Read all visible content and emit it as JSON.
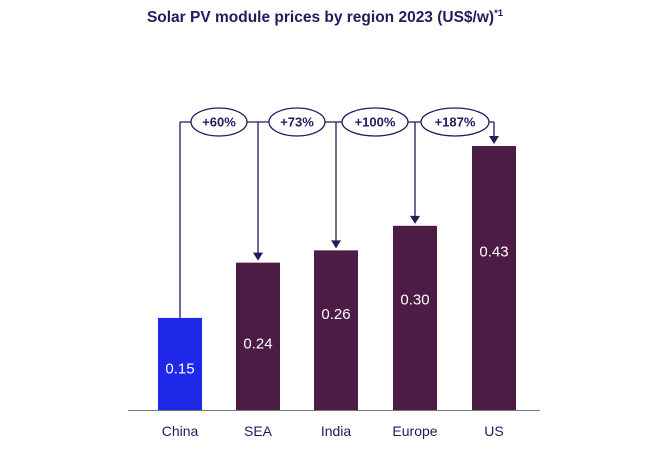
{
  "title": {
    "text": "Solar PV module prices by region 2023 (US$/w)",
    "superscript": "*1"
  },
  "colors": {
    "highlight": "#1f27e8",
    "bar": "#4c1c44",
    "text": "#1f1d5c",
    "arrow": "#1f1d5c",
    "axis": "#777777"
  },
  "chart_data": {
    "type": "bar",
    "title": "Solar PV module prices by region 2023 (US$/w)*1",
    "categories": [
      "China",
      "SEA",
      "India",
      "Europe",
      "US"
    ],
    "values": [
      0.15,
      0.24,
      0.26,
      0.3,
      0.43
    ],
    "value_labels": [
      "0.15",
      "0.24",
      "0.26",
      "0.30",
      "0.43"
    ],
    "ylim": [
      0,
      0.43
    ],
    "highlight_category": "China",
    "annotations": [
      {
        "from": "China",
        "to": "SEA",
        "text": "+60%"
      },
      {
        "from": "China",
        "to": "India",
        "text": "+73%"
      },
      {
        "from": "China",
        "to": "Europe",
        "text": "+100%"
      },
      {
        "from": "China",
        "to": "US",
        "text": "+187%"
      }
    ]
  }
}
